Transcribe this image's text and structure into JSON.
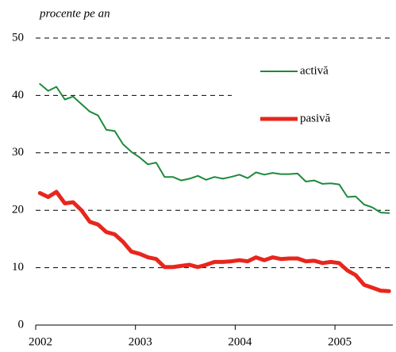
{
  "chart_data": {
    "type": "line",
    "y_label": "procente pe an",
    "x": [
      2002.042,
      2002.125,
      2002.208,
      2002.292,
      2002.375,
      2002.458,
      2002.542,
      2002.625,
      2002.708,
      2002.792,
      2002.875,
      2002.958,
      2003.042,
      2003.125,
      2003.208,
      2003.292,
      2003.375,
      2003.458,
      2003.542,
      2003.625,
      2003.708,
      2003.792,
      2003.875,
      2003.958,
      2004.042,
      2004.125,
      2004.208,
      2004.292,
      2004.375,
      2004.458,
      2004.542,
      2004.625,
      2004.708,
      2004.792,
      2004.875,
      2004.958,
      2005.042,
      2005.125,
      2005.208,
      2005.292,
      2005.375,
      2005.458,
      2005.542
    ],
    "series": [
      {
        "name": "activă",
        "color": "#1e8a3c",
        "width": 2,
        "values": [
          42,
          40.8,
          41.5,
          39.3,
          39.8,
          38.5,
          37.2,
          36.5,
          34,
          33.8,
          31.5,
          30.2,
          29.2,
          28,
          28.3,
          25.8,
          25.8,
          25.2,
          25.5,
          26,
          25.3,
          25.8,
          25.5,
          25.8,
          26.2,
          25.6,
          26.6,
          26.2,
          26.5,
          26.3,
          26.3,
          26.4,
          25,
          25.2,
          24.6,
          24.7,
          24.5,
          22.3,
          22.4,
          21,
          20.5,
          19.6,
          19.5
        ]
      },
      {
        "name": "pasivă",
        "color": "#e8261c",
        "width": 5,
        "values": [
          23,
          22.3,
          23.2,
          21.2,
          21.4,
          20,
          18,
          17.5,
          16.2,
          15.8,
          14.5,
          12.8,
          12.4,
          11.8,
          11.5,
          10.1,
          10.1,
          10.3,
          10.5,
          10.1,
          10.5,
          11,
          11,
          11.1,
          11.3,
          11.1,
          11.8,
          11.3,
          11.8,
          11.5,
          11.6,
          11.6,
          11.1,
          11.2,
          10.8,
          11,
          10.8,
          9.5,
          8.7,
          7,
          6.5,
          6,
          5.9
        ]
      }
    ],
    "xlim": [
      2002,
      2005.58
    ],
    "xticks": [
      2002,
      2003,
      2004,
      2005
    ],
    "ylim": [
      0,
      50
    ],
    "yticks": [
      0,
      10,
      20,
      30,
      40,
      50
    ],
    "grid": true
  }
}
